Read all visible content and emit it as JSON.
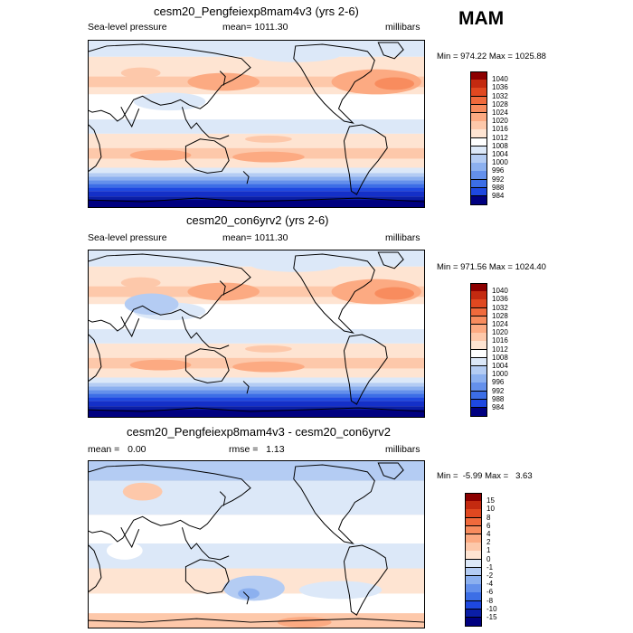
{
  "season": "MAM",
  "colors": {
    "levels": [
      "#000080",
      "#0a1ea6",
      "#1430c8",
      "#1e48e0",
      "#3c6ee6",
      "#6490eb",
      "#8cb0ef",
      "#b4ccf3",
      "#dce8f8",
      "#ffffff",
      "#fee4d2",
      "#fdc8aa",
      "#fcaa82",
      "#f88c5e",
      "#f06a3c",
      "#e04820",
      "#c42a10",
      "#8c0000"
    ],
    "land": "#000000",
    "border": "#000000"
  },
  "panels": [
    {
      "title": "cesm20_Pengfeiexp8mam4v3 (yrs 2-6)",
      "left_label": "Sea-level pressure",
      "stat_label": "mean= 1011.30",
      "units": "millibars",
      "minmax": "Min = 974.22 Max = 1025.88",
      "colorbar_labels": [
        "1040",
        "1036",
        "1032",
        "1028",
        "1024",
        "1020",
        "1016",
        "1012",
        "1008",
        "1004",
        "1000",
        "996",
        "992",
        "988",
        "984"
      ],
      "colorbar_colors": [
        "#8c0000",
        "#c42a10",
        "#e04820",
        "#f06a3c",
        "#f88c5e",
        "#fcaa82",
        "#fdc8aa",
        "#fee4d2",
        "#ffffff",
        "#dce8f8",
        "#b4ccf3",
        "#8cb0ef",
        "#6490eb",
        "#3c6ee6",
        "#1e48e0",
        "#000080"
      ]
    },
    {
      "title": "cesm20_con6yrv2 (yrs 2-6)",
      "left_label": "Sea-level pressure",
      "stat_label": "mean= 1011.30",
      "units": "millibars",
      "minmax": "Min = 971.56 Max = 1024.40",
      "colorbar_labels": [
        "1040",
        "1036",
        "1032",
        "1028",
        "1024",
        "1020",
        "1016",
        "1012",
        "1008",
        "1004",
        "1000",
        "996",
        "992",
        "988",
        "984"
      ],
      "colorbar_colors": [
        "#8c0000",
        "#c42a10",
        "#e04820",
        "#f06a3c",
        "#f88c5e",
        "#fcaa82",
        "#fdc8aa",
        "#fee4d2",
        "#ffffff",
        "#dce8f8",
        "#b4ccf3",
        "#8cb0ef",
        "#6490eb",
        "#3c6ee6",
        "#1e48e0",
        "#000080"
      ]
    },
    {
      "title": "cesm20_Pengfeiexp8mam4v3 - cesm20_con6yrv2",
      "left_label": "mean =   0.00",
      "stat_label": "rmse =   1.13",
      "units": "millibars",
      "minmax": "Min =  -5.99 Max =   3.63",
      "colorbar_labels": [
        "15",
        "10",
        "8",
        "6",
        "4",
        "2",
        "1",
        "0",
        "-1",
        "-2",
        "-4",
        "-6",
        "-8",
        "-10",
        "-15"
      ],
      "colorbar_colors": [
        "#8c0000",
        "#c42a10",
        "#e04820",
        "#f06a3c",
        "#f88c5e",
        "#fcaa82",
        "#fdc8aa",
        "#fee4d2",
        "#dce8f8",
        "#b4ccf3",
        "#8cb0ef",
        "#6490eb",
        "#3c6ee6",
        "#1e48e0",
        "#0a1ea6",
        "#000080"
      ]
    }
  ]
}
